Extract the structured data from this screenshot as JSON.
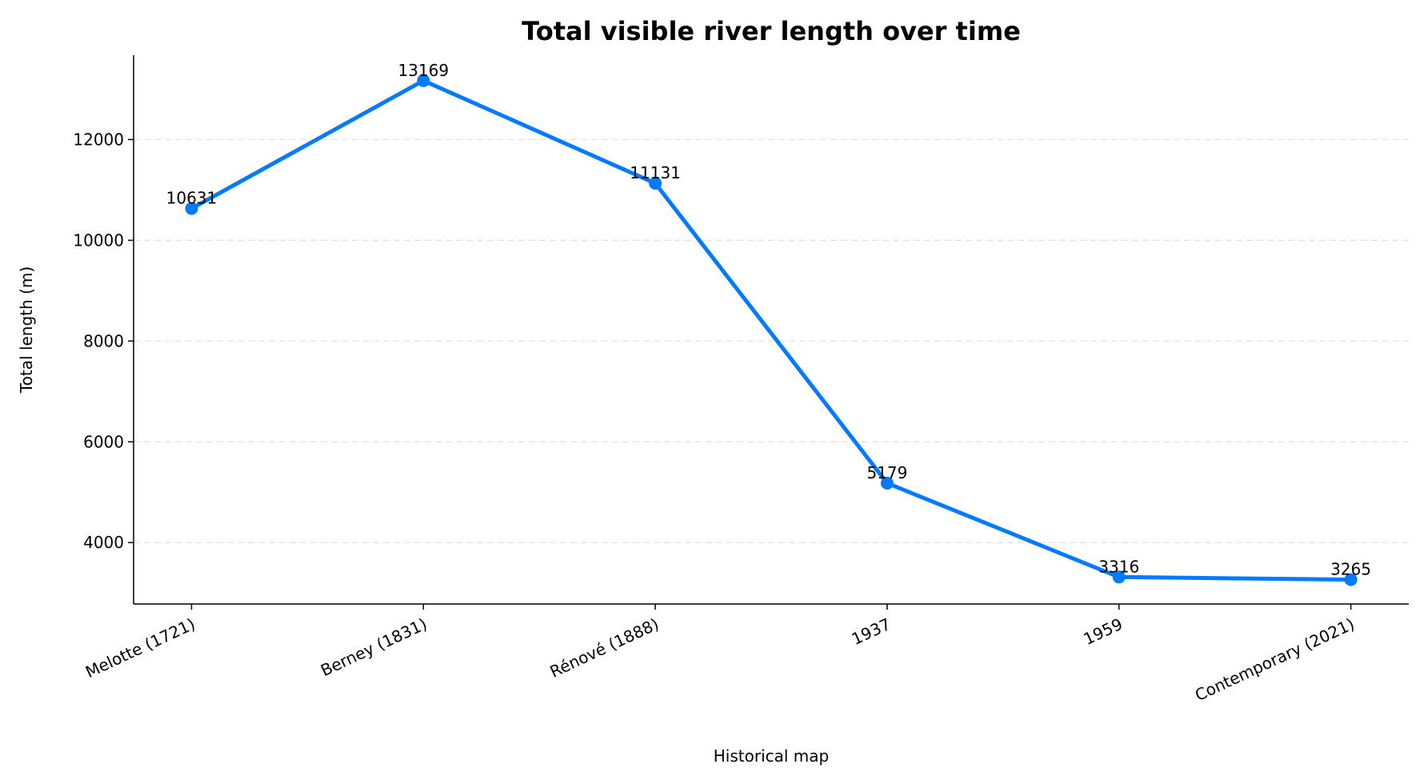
{
  "chart_data": {
    "type": "line",
    "title": "Total visible river length over time",
    "x_label": "Historical map",
    "y_label": "Total length (m)",
    "categories": [
      "Melotte (1721)",
      "Berney (1831)",
      "Rénové (1888)",
      "1937",
      "1959",
      "Contemporary (2021)"
    ],
    "values": [
      10631,
      13169,
      11131,
      5179,
      3316,
      3265
    ],
    "color": "#007bff",
    "ylim": [
      2781,
      13674
    ],
    "yticks": [
      4000,
      6000,
      8000,
      10000,
      12000
    ],
    "grid": true
  }
}
